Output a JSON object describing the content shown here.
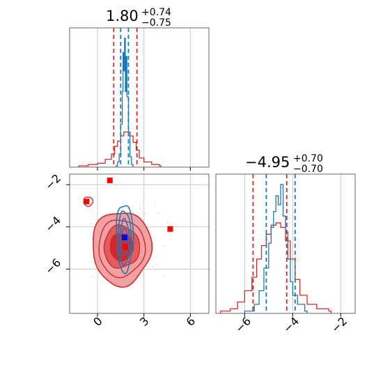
{
  "colors": {
    "blue": "#1f77b4",
    "red": "#d62728",
    "red_fill_light": "#f0a1a4",
    "red_fill_mid": "#e35b5e",
    "grid": "#c8c8c8",
    "frame": "#666666",
    "marker_red": "#ff0000",
    "marker_blue": "#0000ff"
  },
  "titles": {
    "p1": {
      "value": "1.80",
      "plus": "+0.74",
      "minus": "−0.75"
    },
    "p2": {
      "value": "−4.95",
      "plus": "+0.70",
      "minus": "−0.70"
    }
  },
  "chart_data": [
    {
      "type": "histogram",
      "panel": "marginal-p1",
      "xlim": [
        -1.8,
        7.2
      ],
      "grid": true,
      "series": [
        {
          "color": "blue",
          "bins": [
            [
              1.2,
              1
            ],
            [
              1.3,
              4
            ],
            [
              1.4,
              10
            ],
            [
              1.5,
              33
            ],
            [
              1.6,
              58
            ],
            [
              1.65,
              88
            ],
            [
              1.7,
              74
            ],
            [
              1.75,
              99
            ],
            [
              1.8,
              58
            ],
            [
              1.85,
              85
            ],
            [
              1.9,
              54
            ],
            [
              2.0,
              25
            ],
            [
              2.1,
              8
            ],
            [
              2.2,
              2
            ]
          ]
        },
        {
          "color": "red",
          "bins": [
            [
              -1.2,
              1
            ],
            [
              -0.6,
              2
            ],
            [
              0.0,
              3
            ],
            [
              0.5,
              6
            ],
            [
              0.9,
              10
            ],
            [
              1.1,
              16
            ],
            [
              1.3,
              20
            ],
            [
              1.5,
              24
            ],
            [
              1.7,
              27
            ],
            [
              1.9,
              27
            ],
            [
              2.1,
              24
            ],
            [
              2.3,
              19
            ],
            [
              2.5,
              13
            ],
            [
              2.7,
              7
            ],
            [
              3.0,
              4
            ],
            [
              3.5,
              2
            ],
            [
              4.0,
              1
            ]
          ]
        }
      ],
      "quantile_lines": {
        "red": [
          1.05,
          2.55
        ],
        "blue": [
          1.5,
          2.0
        ]
      }
    },
    {
      "type": "contour",
      "panel": "joint",
      "xlim": [
        -1.8,
        7.2
      ],
      "ylim": [
        -8.1,
        -1.5
      ],
      "xticks": [
        0,
        3,
        6
      ],
      "yticks": [
        -2,
        -4,
        -6
      ],
      "grid": true,
      "markers": [
        {
          "color": "marker_red",
          "x": 0.8,
          "y": -1.8
        },
        {
          "color": "marker_red",
          "x": -0.7,
          "y": -2.8
        },
        {
          "color": "marker_red",
          "x": 4.7,
          "y": -4.1
        },
        {
          "color": "marker_red",
          "x": 1.8,
          "y": -4.95
        },
        {
          "color": "marker_blue",
          "x": 1.75,
          "y": -4.5
        }
      ]
    },
    {
      "type": "histogram",
      "panel": "marginal-p2",
      "xlim": [
        -7.2,
        -1.4
      ],
      "xticks": [
        -6,
        -4,
        -2
      ],
      "grid": true,
      "series": [
        {
          "color": "blue",
          "bins": [
            [
              -6.0,
              1
            ],
            [
              -5.6,
              4
            ],
            [
              -5.4,
              10
            ],
            [
              -5.2,
              20
            ],
            [
              -5.0,
              31
            ],
            [
              -4.9,
              38
            ],
            [
              -4.8,
              45
            ],
            [
              -4.7,
              52
            ],
            [
              -4.6,
              48
            ],
            [
              -4.5,
              57
            ],
            [
              -4.4,
              43
            ],
            [
              -4.3,
              36
            ],
            [
              -4.2,
              24
            ],
            [
              -4.1,
              14
            ],
            [
              -4.0,
              8
            ],
            [
              -3.8,
              4
            ],
            [
              -3.5,
              1
            ]
          ]
        },
        {
          "color": "red",
          "bins": [
            [
              -7.0,
              1
            ],
            [
              -6.6,
              2
            ],
            [
              -6.3,
              5
            ],
            [
              -6.0,
              10
            ],
            [
              -5.7,
              16
            ],
            [
              -5.5,
              24
            ],
            [
              -5.3,
              30
            ],
            [
              -5.1,
              35
            ],
            [
              -4.9,
              39
            ],
            [
              -4.7,
              40
            ],
            [
              -4.5,
              38
            ],
            [
              -4.3,
              32
            ],
            [
              -4.1,
              24
            ],
            [
              -3.9,
              15
            ],
            [
              -3.7,
              8
            ],
            [
              -3.4,
              4
            ],
            [
              -3.0,
              2
            ],
            [
              -2.5,
              1
            ]
          ]
        }
      ],
      "quantile_lines": {
        "red": [
          -5.65,
          -4.25
        ],
        "blue": [
          -5.1,
          -3.9
        ]
      }
    }
  ]
}
